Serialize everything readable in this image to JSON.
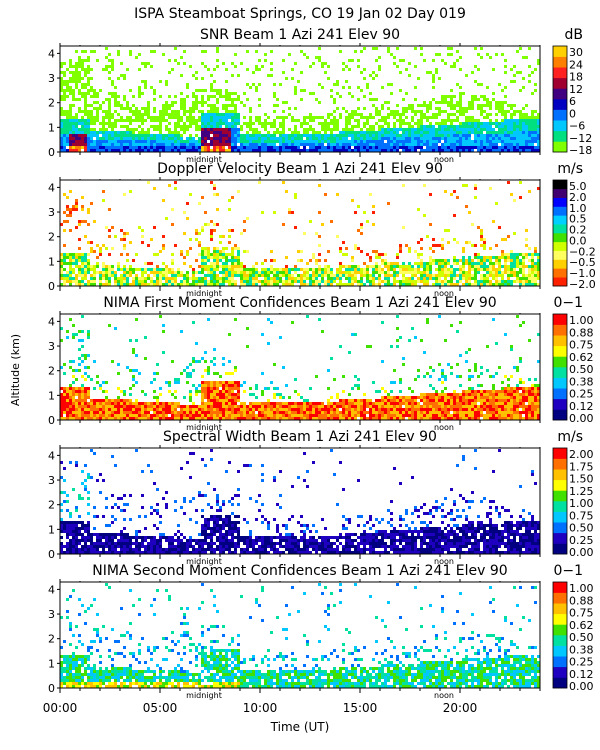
{
  "figure": {
    "title": "ISPA Steamboat Springs, CO   19 Jan 02 Day 019",
    "ylabel": "Altitude (km)",
    "xlabel": "Time (UT)"
  },
  "colors": {
    "snr": [
      "#80ff00",
      "#00e080",
      "#00c8ff",
      "#0070ff",
      "#0000c0",
      "#400080",
      "#a00030",
      "#ff2020",
      "#ff8000",
      "#ffd000"
    ],
    "vel": [
      "#ff2000",
      "#ff7000",
      "#ffd000",
      "#ffff60",
      "#d0ff00",
      "#40e000",
      "#00e0a0",
      "#00d0ff",
      "#0070ff",
      "#0000ff",
      "#400070",
      "#000000"
    ],
    "conf": [
      "#000080",
      "#2000c0",
      "#0070ff",
      "#00c8ff",
      "#00e0a0",
      "#40e000",
      "#ffff00",
      "#ffc000",
      "#ff7000",
      "#ff0000"
    ]
  },
  "chart_data": [
    {
      "type": "heatmap",
      "title": "SNR Beam 1 Azi 241 Elev 90",
      "unit": "dB",
      "xlim": [
        0,
        24
      ],
      "ylim": [
        0,
        4.3
      ],
      "yticks": [
        "0",
        "1",
        "2",
        "3",
        "4"
      ],
      "markers": [
        "midnight",
        "noon"
      ],
      "colorbar_labels": [
        "30",
        "24",
        "18",
        "12",
        "6",
        "0",
        "−6",
        "−12",
        "−18"
      ],
      "colorbar_range": [
        -18,
        30
      ]
    },
    {
      "type": "heatmap",
      "title": "Doppler Velocity Beam 1 Azi 241 Elev 90",
      "unit": "m/s",
      "xlim": [
        0,
        24
      ],
      "ylim": [
        0,
        4.3
      ],
      "yticks": [
        "0",
        "1",
        "2",
        "3",
        "4"
      ],
      "markers": [
        "midnight",
        "noon"
      ],
      "colorbar_labels": [
        "5.0",
        "2.0",
        "1.0",
        "0.5",
        "0.2",
        "0.0",
        "−0.2",
        "−0.5",
        "−1.0",
        "−2.0"
      ],
      "colorbar_range": [
        -2.0,
        5.0
      ]
    },
    {
      "type": "heatmap",
      "title": "NIMA First Moment Confidences Beam 1 Azi 241 Elev 90",
      "unit": "0−1",
      "xlim": [
        0,
        24
      ],
      "ylim": [
        0,
        4.3
      ],
      "yticks": [
        "0",
        "1",
        "2",
        "3",
        "4"
      ],
      "markers": [
        "midnight",
        "noon"
      ],
      "colorbar_labels": [
        "1.00",
        "0.88",
        "0.75",
        "0.62",
        "0.50",
        "0.38",
        "0.25",
        "0.12",
        "0.00"
      ],
      "colorbar_range": [
        0,
        1
      ]
    },
    {
      "type": "heatmap",
      "title": "Spectral Width Beam 1 Azi 241 Elev 90",
      "unit": "m/s",
      "xlim": [
        0,
        24
      ],
      "ylim": [
        0,
        4.3
      ],
      "yticks": [
        "0",
        "1",
        "2",
        "3",
        "4"
      ],
      "markers": [
        "midnight",
        "noon"
      ],
      "colorbar_labels": [
        "2.00",
        "1.75",
        "1.50",
        "1.25",
        "1.00",
        "0.75",
        "0.50",
        "0.25",
        "0.00"
      ],
      "colorbar_range": [
        0,
        2
      ]
    },
    {
      "type": "heatmap",
      "title": "NIMA Second Moment Confidences Beam 1 Azi 241 Elev 90",
      "unit": "0−1",
      "xlim": [
        0,
        24
      ],
      "ylim": [
        0,
        4.3
      ],
      "yticks": [
        "0",
        "1",
        "2",
        "3",
        "4"
      ],
      "markers": [
        "midnight",
        "noon"
      ],
      "colorbar_labels": [
        "1.00",
        "0.88",
        "0.75",
        "0.62",
        "0.50",
        "0.38",
        "0.25",
        "0.12",
        "0.00"
      ],
      "colorbar_range": [
        0,
        1
      ],
      "xticks": [
        "00:00",
        "05:00",
        "10:00",
        "15:00",
        "20:00"
      ],
      "xtick_values": [
        0,
        5,
        10,
        15,
        20
      ]
    }
  ]
}
